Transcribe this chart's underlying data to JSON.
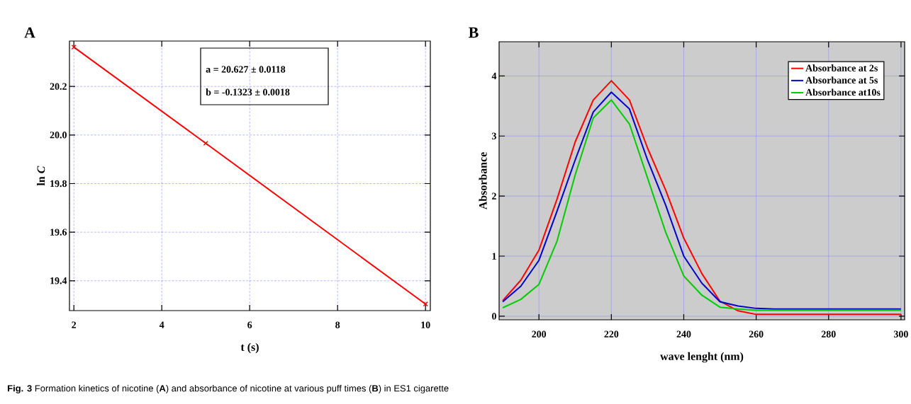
{
  "chart_data": [
    {
      "type": "line",
      "xlabel": "t (s)",
      "ylabel": "ln *C*",
      "x": [
        2,
        5,
        10
      ],
      "series": [
        {
          "color": "#ff0000",
          "values": [
            20.362,
            19.966,
            19.304
          ]
        }
      ],
      "xlim": [
        1.9,
        10.11
      ],
      "ylim": [
        19.277,
        20.387
      ],
      "xticks": [
        2,
        4,
        6,
        8,
        10
      ],
      "yticks": [
        19.4,
        19.6,
        19.8,
        {
          "value": 20.0,
          "label": "20.0"
        },
        20.2
      ],
      "grid": true,
      "marker": "cross",
      "line_style": "solid",
      "legend": false,
      "annotations": [
        "A",
        "a  =  20.627 ± 0.0118",
        "b = -0.1323 ± 0.0018",
        "**Fig. 3** Formation kinetics of nicotine (**A**) and absorbance of nicotine at various puff times (**B**) in ES1 cigarette"
      ]
    },
    {
      "type": "line",
      "xlabel": "wave lenght (nm)",
      "ylabel": "Absorbance",
      "x": [
        190,
        195,
        200,
        205,
        210,
        215,
        220,
        225,
        230,
        235,
        240,
        245,
        250,
        255,
        260,
        265,
        270,
        280,
        290,
        300
      ],
      "series": [
        {
          "name": "Absorbance at 2s",
          "color": "#ff0000",
          "values": [
            0.26,
            0.6,
            1.1,
            1.95,
            2.9,
            3.6,
            3.92,
            3.6,
            2.8,
            2.1,
            1.3,
            0.71,
            0.25,
            0.09,
            0.03,
            0.03,
            0.03,
            0.03,
            0.03,
            0.03
          ]
        },
        {
          "name": "Absorbance at 5s",
          "color": "#0000cc",
          "values": [
            0.24,
            0.5,
            0.93,
            1.75,
            2.6,
            3.4,
            3.73,
            3.45,
            2.6,
            1.85,
            1.0,
            0.55,
            0.24,
            0.17,
            0.13,
            0.12,
            0.12,
            0.12,
            0.12,
            0.12
          ]
        },
        {
          "name": "Absorbance at10s",
          "color": "#00cc00",
          "values": [
            0.14,
            0.28,
            0.53,
            1.25,
            2.35,
            3.3,
            3.6,
            3.2,
            2.3,
            1.4,
            0.67,
            0.35,
            0.15,
            0.12,
            0.1,
            0.1,
            0.1,
            0.1,
            0.1,
            0.1
          ]
        }
      ],
      "xlim": [
        189,
        301
      ],
      "ylim": [
        -0.06,
        4.57
      ],
      "xticks": [
        200,
        220,
        240,
        260,
        280,
        300
      ],
      "yticks": [
        0,
        1,
        2,
        3,
        4
      ],
      "grid": true,
      "marker": "none",
      "line_style": "solid",
      "legend": "top right",
      "annotations": [
        "B"
      ]
    }
  ]
}
